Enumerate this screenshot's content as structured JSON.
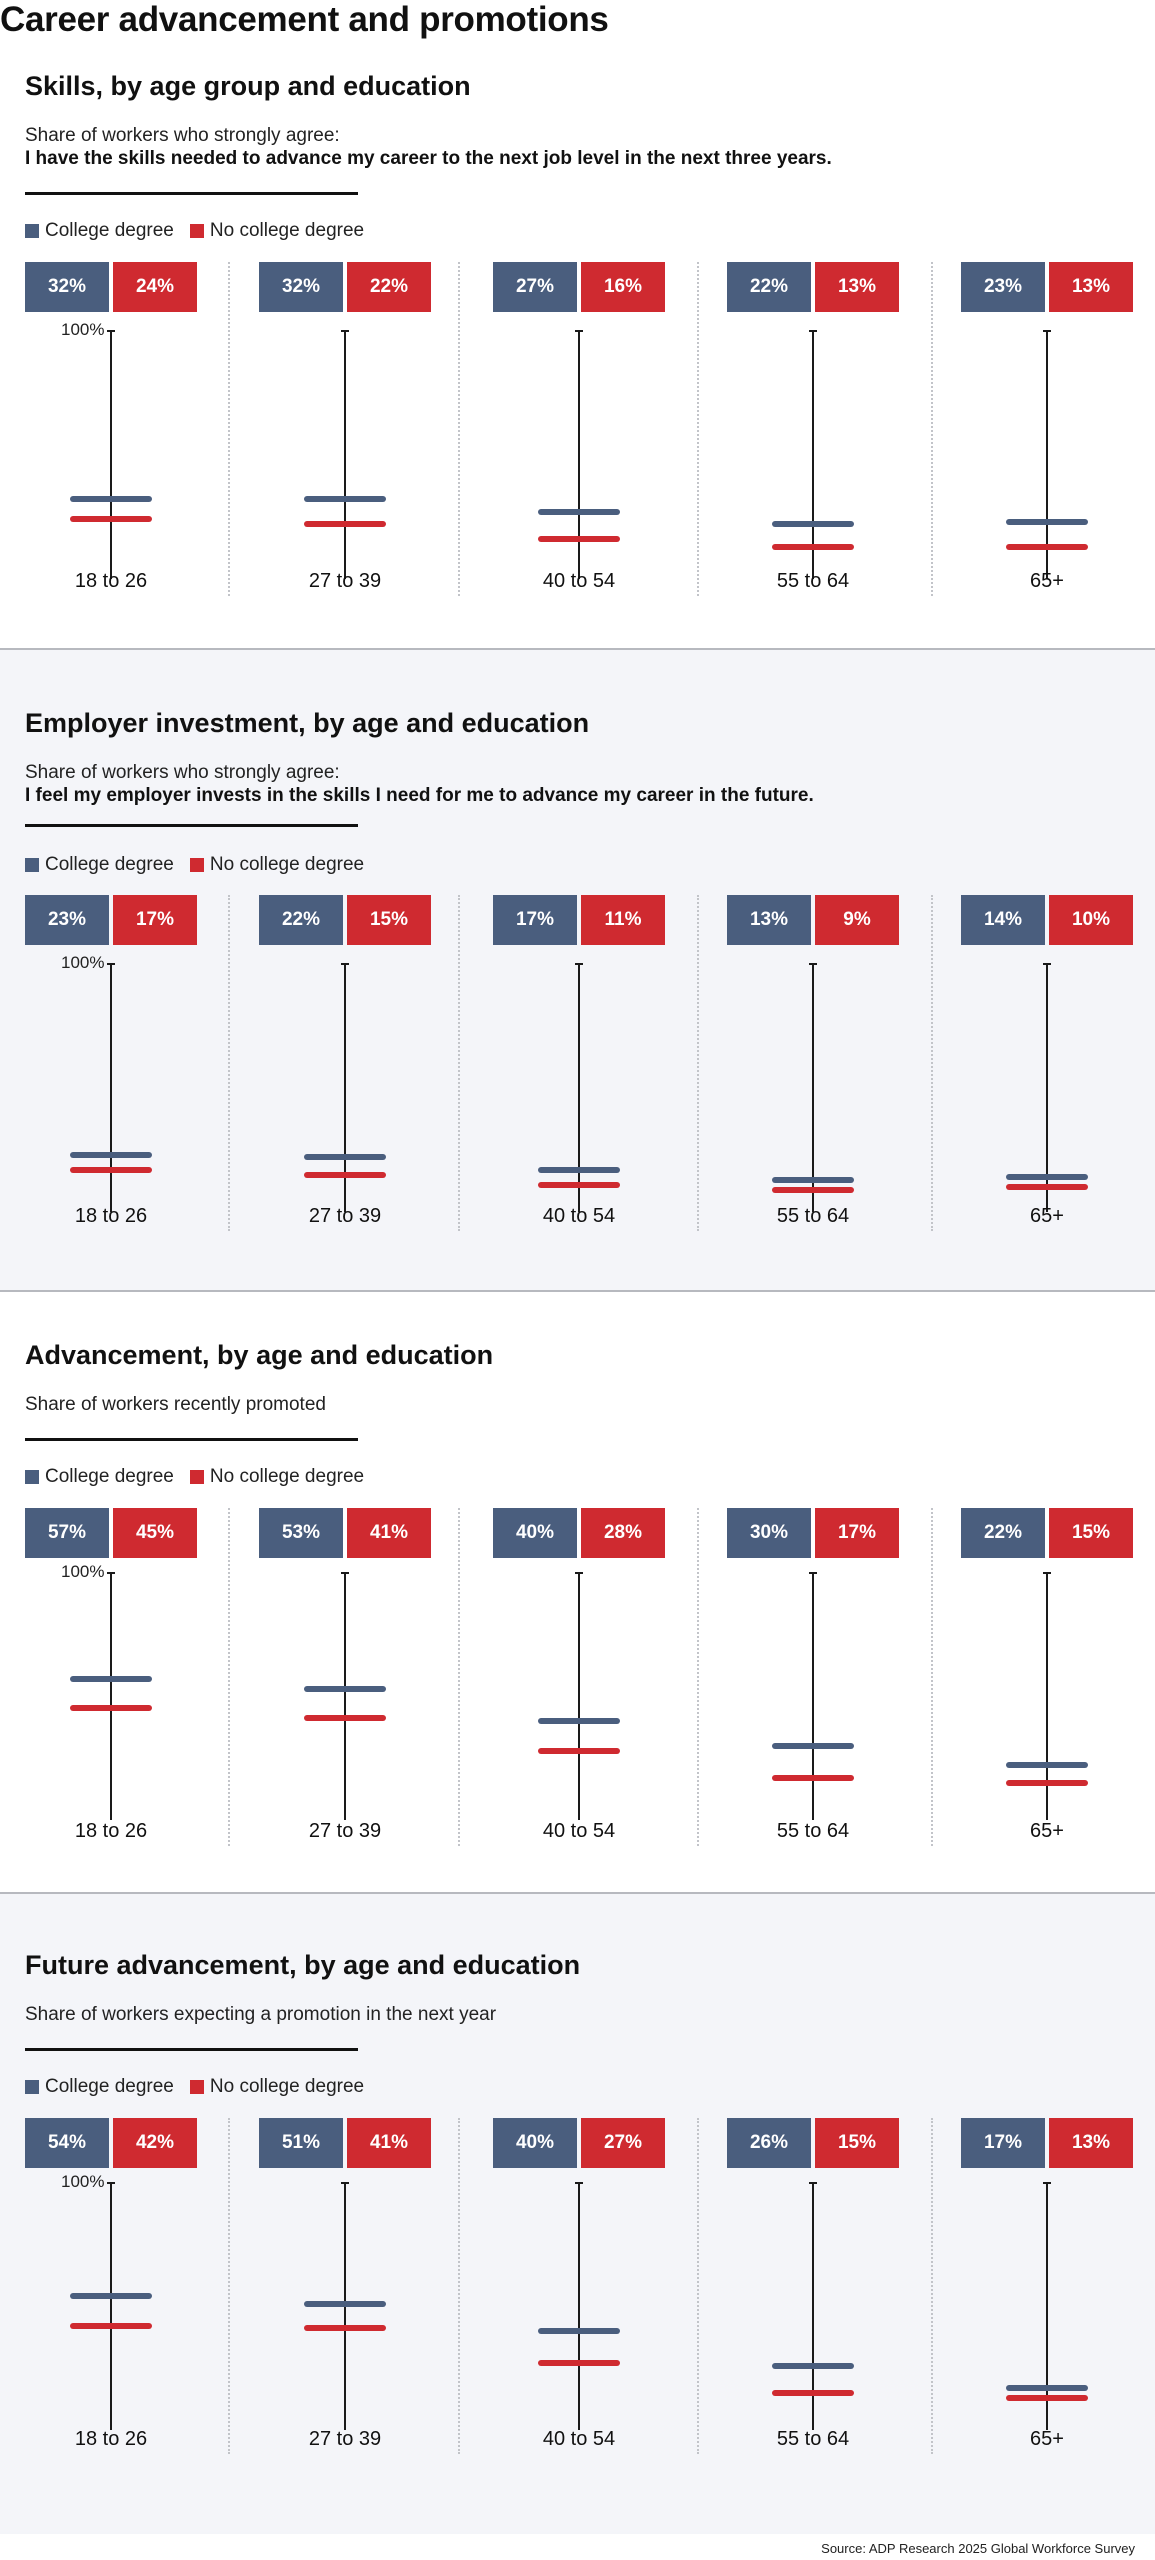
{
  "title": "Career advancement and promotions",
  "source": "Source: ADP Research 2025 Global Workforce Survey",
  "legend": {
    "college": "College degree",
    "no_college": "No college degree"
  },
  "colors": {
    "college": "#4a5e7e",
    "no_college": "#cf2a30"
  },
  "axis_top_label": "100%",
  "chart_data": [
    {
      "type": "dot",
      "title": "Skills, by age group and education",
      "subtitle": "Share of workers who strongly agree:",
      "question": "I have the skills needed to advance my career to the next job level in the next three years.",
      "categories": [
        "18 to 26",
        "27 to 39",
        "40 to 54",
        "55 to 64",
        "65+"
      ],
      "ylim": [
        0,
        100
      ],
      "series": [
        {
          "name": "College degree",
          "values": [
            32,
            32,
            27,
            22,
            23
          ]
        },
        {
          "name": "No college degree",
          "values": [
            24,
            22,
            16,
            13,
            13
          ]
        }
      ]
    },
    {
      "type": "dot",
      "title": "Employer investment, by age and education",
      "subtitle": "Share of workers who strongly agree:",
      "question": "I feel my employer invests in the skills I need for me to advance my career in the future.",
      "categories": [
        "18 to 26",
        "27 to 39",
        "40 to 54",
        "55 to 64",
        "65+"
      ],
      "ylim": [
        0,
        100
      ],
      "series": [
        {
          "name": "College degree",
          "values": [
            23,
            22,
            17,
            13,
            14
          ]
        },
        {
          "name": "No college degree",
          "values": [
            17,
            15,
            11,
            9,
            10
          ]
        }
      ]
    },
    {
      "type": "dot",
      "title": "Advancement, by age and education",
      "subtitle": "Share of workers recently promoted",
      "question": "",
      "categories": [
        "18 to 26",
        "27 to 39",
        "40 to 54",
        "55 to 64",
        "65+"
      ],
      "ylim": [
        0,
        100
      ],
      "series": [
        {
          "name": "College degree",
          "values": [
            57,
            53,
            40,
            30,
            22
          ]
        },
        {
          "name": "No college degree",
          "values": [
            45,
            41,
            28,
            17,
            15
          ]
        }
      ]
    },
    {
      "type": "dot",
      "title": "Future advancement, by age and education",
      "subtitle": "Share of workers expecting a promotion in the next year",
      "question": "",
      "categories": [
        "18 to 26",
        "27 to 39",
        "40 to 54",
        "55 to 64",
        "65+"
      ],
      "ylim": [
        0,
        100
      ],
      "series": [
        {
          "name": "College degree",
          "values": [
            54,
            51,
            40,
            26,
            17
          ]
        },
        {
          "name": "No college degree",
          "values": [
            42,
            41,
            27,
            15,
            13
          ]
        }
      ]
    }
  ]
}
